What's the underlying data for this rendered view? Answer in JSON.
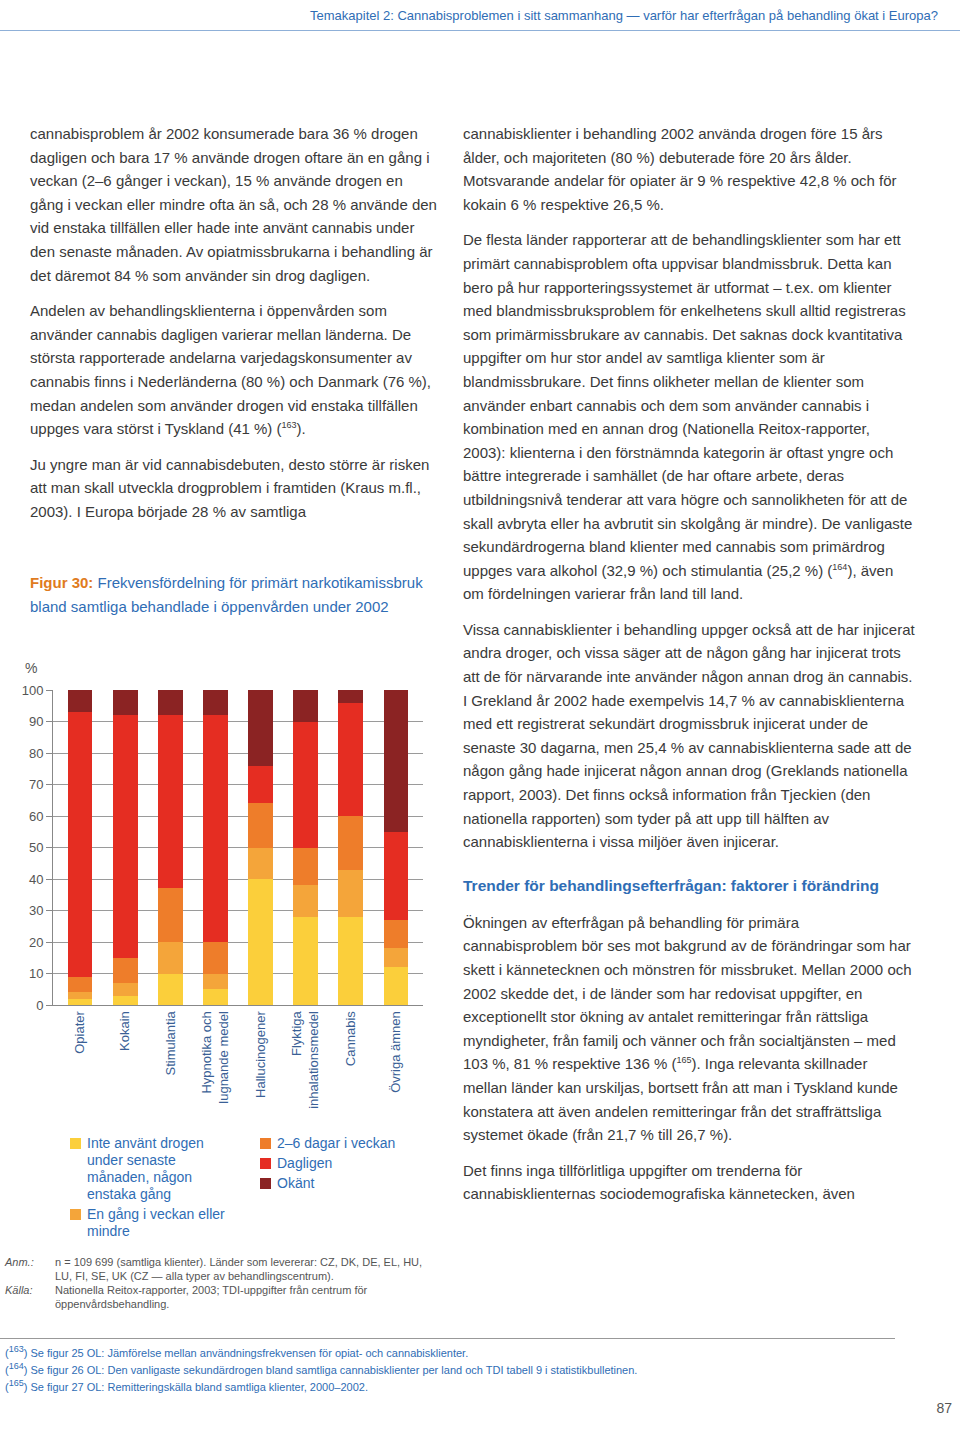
{
  "header": "Temakapitel 2: Cannabisproblemen i sitt sammanhang — varför har efterfrågan på behandling ökat i Europa?",
  "left_column": [
    [
      "cannabisproblem år 2002 konsumerade bara 36 % drogen dagligen och bara 17 % använde drogen oftare än en gång i veckan (2–6 gånger i veckan), 15 % använde drogen en gång i veckan eller mindre ofta än så, och 28 % använde den vid enstaka tillfällen eller hade inte använt cannabis under den senaste månaden. Av opiatmissbrukarna i behandling är det däremot 84 % som använder sin drog dagligen."
    ],
    [
      "Andelen av behandlingsklienterna i öppenvården som använder cannabis dagligen varierar mellan länderna. De största rapporterade andelarna varjedagskonsumenter av cannabis finns i Nederländerna (80 %) och Danmark (76 %), medan andelen som använder drogen vid enstaka tillfällen uppges vara störst i Tyskland (41 %) (",
      {
        "ref": "163"
      },
      ")."
    ],
    [
      "Ju yngre man är vid cannabisdebuten, desto större är risken att man skall utveckla drogproblem i framtiden (Kraus m.fl., 2003). I Europa började 28 % av samtliga"
    ]
  ],
  "figure": {
    "label": "Figur 30:",
    "caption": "Frekvensfördelning för primärt narkotikamissbruk bland samtliga behandlade i öppenvården under 2002",
    "notes": [
      {
        "label": "Anm.:",
        "text": "n = 109 699 (samtliga klienter). Länder som levererar: CZ, DK, DE, EL, HU, LU, FI, SE, UK (CZ — alla typer av behandlingscentrum)."
      },
      {
        "label": "Källa:",
        "text": "Nationella Reitox-rapporter, 2003; TDI-uppgifter från centrum för öppenvårdsbehandling."
      }
    ]
  },
  "chart_data": {
    "type": "bar",
    "stacked": true,
    "grid": true,
    "legend": "bottom",
    "y_label": "%",
    "categories": [
      "Opiater",
      "Kokain",
      "Stimulantia",
      "Hypnotika och lugnande medel",
      "Hallucinogener",
      "Flyktiga inhalationsmedel",
      "Cannabis",
      "Övriga ämnen"
    ],
    "series": [
      {
        "name": "Inte använt drogen under senaste månaden, någon enstaka gång",
        "color": "#fbcf3b",
        "values": [
          2,
          3,
          10,
          5,
          40,
          28,
          28,
          12
        ]
      },
      {
        "name": "En gång i veckan eller mindre",
        "color": "#f4a53a",
        "values": [
          2,
          4,
          10,
          5,
          10,
          10,
          15,
          6
        ]
      },
      {
        "name": "2–6 dagar i veckan",
        "color": "#ee7d2a",
        "values": [
          5,
          8,
          17,
          10,
          14,
          12,
          17,
          9
        ]
      },
      {
        "name": "Dagligen",
        "color": "#e52d22",
        "values": [
          84,
          77,
          55,
          72,
          12,
          40,
          36,
          28
        ]
      },
      {
        "name": "Okänt",
        "color": "#8b2323",
        "values": [
          7,
          8,
          8,
          8,
          24,
          10,
          4,
          45
        ]
      }
    ],
    "ylim": [
      0,
      100
    ],
    "yticks": [
      0,
      10,
      20,
      30,
      40,
      50,
      60,
      70,
      80,
      90,
      100
    ]
  },
  "right_column": [
    {
      "kind": "p",
      "parts": [
        "cannabisklienter i behandling 2002 använda drogen före 15 års ålder, och majoriteten (80 %) debuterade före 20 års ålder. Motsvarande andelar för opiater är 9 % respektive 42,8 % och för kokain 6 % respektive 26,5 %."
      ]
    },
    {
      "kind": "p",
      "parts": [
        "De flesta länder rapporterar att de behandlingsklienter som har ett primärt cannabisproblem ofta uppvisar blandmissbruk. Detta kan bero på hur rapporteringssystemet är utformat – t.ex. om klienter med blandmissbruksproblem för enkelhetens skull alltid registreras som primärmissbrukare av cannabis. Det saknas dock kvantitativa uppgifter om hur stor andel av samtliga klienter som är blandmissbrukare. Det finns olikheter mellan de klienter som använder enbart cannabis och dem som använder cannabis i kombination med en annan drog (Nationella Reitox-rapporter, 2003): klienterna i den förstnämnda kategorin är oftast yngre och bättre integrerade i samhället (de har oftare arbete, deras utbildningsnivå tenderar att vara högre och sannolikheten för att de skall avbryta eller ha avbrutit sin skolgång är mindre). De vanligaste sekundärdrogerna bland klienter med cannabis som primärdrog uppges vara alkohol (32,9 %) och stimulantia (25,2 %) (",
        {
          "ref": "164"
        },
        "), även om fördelningen varierar från land till land."
      ]
    },
    {
      "kind": "p",
      "parts": [
        "Vissa cannabisklienter i behandling uppger också att de har injicerat andra droger, och vissa säger att de någon gång har injicerat trots att de för närvarande inte använder någon annan drog än cannabis. I Grekland år 2002 hade exempelvis 14,7 % av cannabisklienterna med ett registrerat sekundärt drogmissbruk injicerat under de senaste 30 dagarna, men 25,4 % av cannabisklienterna sade att de någon gång hade injicerat någon annan drog (Greklands nationella rapport, 2003). Det finns också information från Tjeckien (den nationella rapporten) som tyder på att upp till hälften av cannabisklienterna i vissa miljöer även injicerar."
      ]
    },
    {
      "kind": "h",
      "parts": [
        "Trender för behandlingsefterfrågan: faktorer i förändring"
      ]
    },
    {
      "kind": "p",
      "parts": [
        "Ökningen av efterfrågan på behandling för primära cannabisproblem bör ses mot bakgrund av de förändringar som har skett i kännetecknen och mönstren för missbruket. Mellan 2000 och 2002 skedde det, i de länder som har redovisat uppgifter, en exceptionellt stor ökning av antalet remitteringar från rättsliga myndigheter, från familj och vänner och från socialtjänsten – med 103 %, 81 % respektive 136 % (",
        {
          "ref": "165"
        },
        "). Inga relevanta skillnader mellan länder kan urskiljas, bortsett från att man i Tyskland kunde konstatera att även andelen remitteringar från det straffrättsliga systemet ökade (från 21,7 % till 26,7 %)."
      ]
    },
    {
      "kind": "p",
      "parts": [
        "Det finns inga tillförlitliga uppgifter om trenderna för cannabisklienternas sociodemografiska kännetecken, även"
      ]
    }
  ],
  "footnotes": [
    [
      "(",
      {
        "ref": "163"
      },
      ") Se figur 25 OL: Jämförelse mellan användningsfrekvensen för opiat- och cannabisklienter."
    ],
    [
      "(",
      {
        "ref": "164"
      },
      ") Se figur 26 OL: Den vanligaste sekundärdrogen bland samtliga cannabisklienter per land och TDI tabell 9 i statistikbulletinen."
    ],
    [
      "(",
      {
        "ref": "165"
      },
      ") Se figur 27 OL: Remitteringskälla bland samtliga klienter, 2000–2002."
    ]
  ],
  "page_number": 87
}
